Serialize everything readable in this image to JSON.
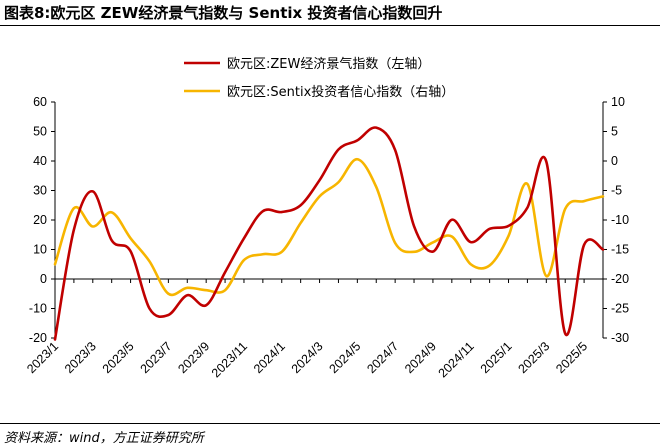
{
  "page": {
    "title": "图表8:欧元区 ZEW经济景气指数与 Sentix 投资者信心指数回升",
    "source": "资料来源：wind，方正证券研究所"
  },
  "chart_data": {
    "type": "line",
    "title": "",
    "xlabel": "",
    "ylabel": "",
    "x_tick_labels": [
      "2023/1",
      "2023/3",
      "2023/5",
      "2023/7",
      "2023/9",
      "2023/11",
      "2024/1",
      "2024/3",
      "2024/5",
      "2024/7",
      "2024/9",
      "2024/11",
      "2025/1",
      "2025/3",
      "2025/5"
    ],
    "x": [
      "2023/1",
      "2023/2",
      "2023/3",
      "2023/4",
      "2023/5",
      "2023/6",
      "2023/7",
      "2023/8",
      "2023/9",
      "2023/10",
      "2023/11",
      "2023/12",
      "2024/1",
      "2024/2",
      "2024/3",
      "2024/4",
      "2024/5",
      "2024/6",
      "2024/7",
      "2024/8",
      "2024/9",
      "2024/10",
      "2024/11",
      "2024/12",
      "2025/1",
      "2025/2",
      "2025/3",
      "2025/4",
      "2025/5",
      "2025/6"
    ],
    "ylim_left": [
      -20,
      60
    ],
    "yticks_left": [
      -20,
      -10,
      0,
      10,
      20,
      30,
      40,
      50,
      60
    ],
    "ylim_right": [
      -30,
      10
    ],
    "yticks_right": [
      -30,
      -25,
      -20,
      -15,
      -10,
      -5,
      0,
      5,
      10
    ],
    "grid": false,
    "legend_position": "top-center",
    "series": [
      {
        "name": "欧元区:ZEW经济景气指数（左轴）",
        "axis": "left",
        "color": "#C00000",
        "values": [
          -20.5,
          16.7,
          29.7,
          13.1,
          9.4,
          -10.0,
          -12.2,
          -5.5,
          -8.9,
          2.3,
          13.8,
          23.0,
          22.7,
          25.0,
          33.5,
          43.9,
          47.0,
          51.3,
          43.7,
          17.9,
          9.3,
          20.1,
          12.5,
          17.0,
          18.0,
          24.2,
          39.8,
          -18.5,
          11.6,
          10.0
        ]
      },
      {
        "name": "欧元区:Sentix投资者信心指数（右轴）",
        "axis": "right",
        "color": "#F7B500",
        "values": [
          -17.5,
          -8.0,
          -11.1,
          -8.7,
          -13.1,
          -17.0,
          -22.5,
          -21.5,
          -21.9,
          -21.9,
          -16.8,
          -15.8,
          -15.4,
          -10.5,
          -6.0,
          -3.6,
          0.3,
          -4.4,
          -13.9,
          -15.4,
          -13.8,
          -12.8,
          -17.5,
          -17.7,
          -12.7,
          -3.9,
          -19.5,
          -8.1,
          -6.8,
          -6.0
        ]
      }
    ]
  }
}
